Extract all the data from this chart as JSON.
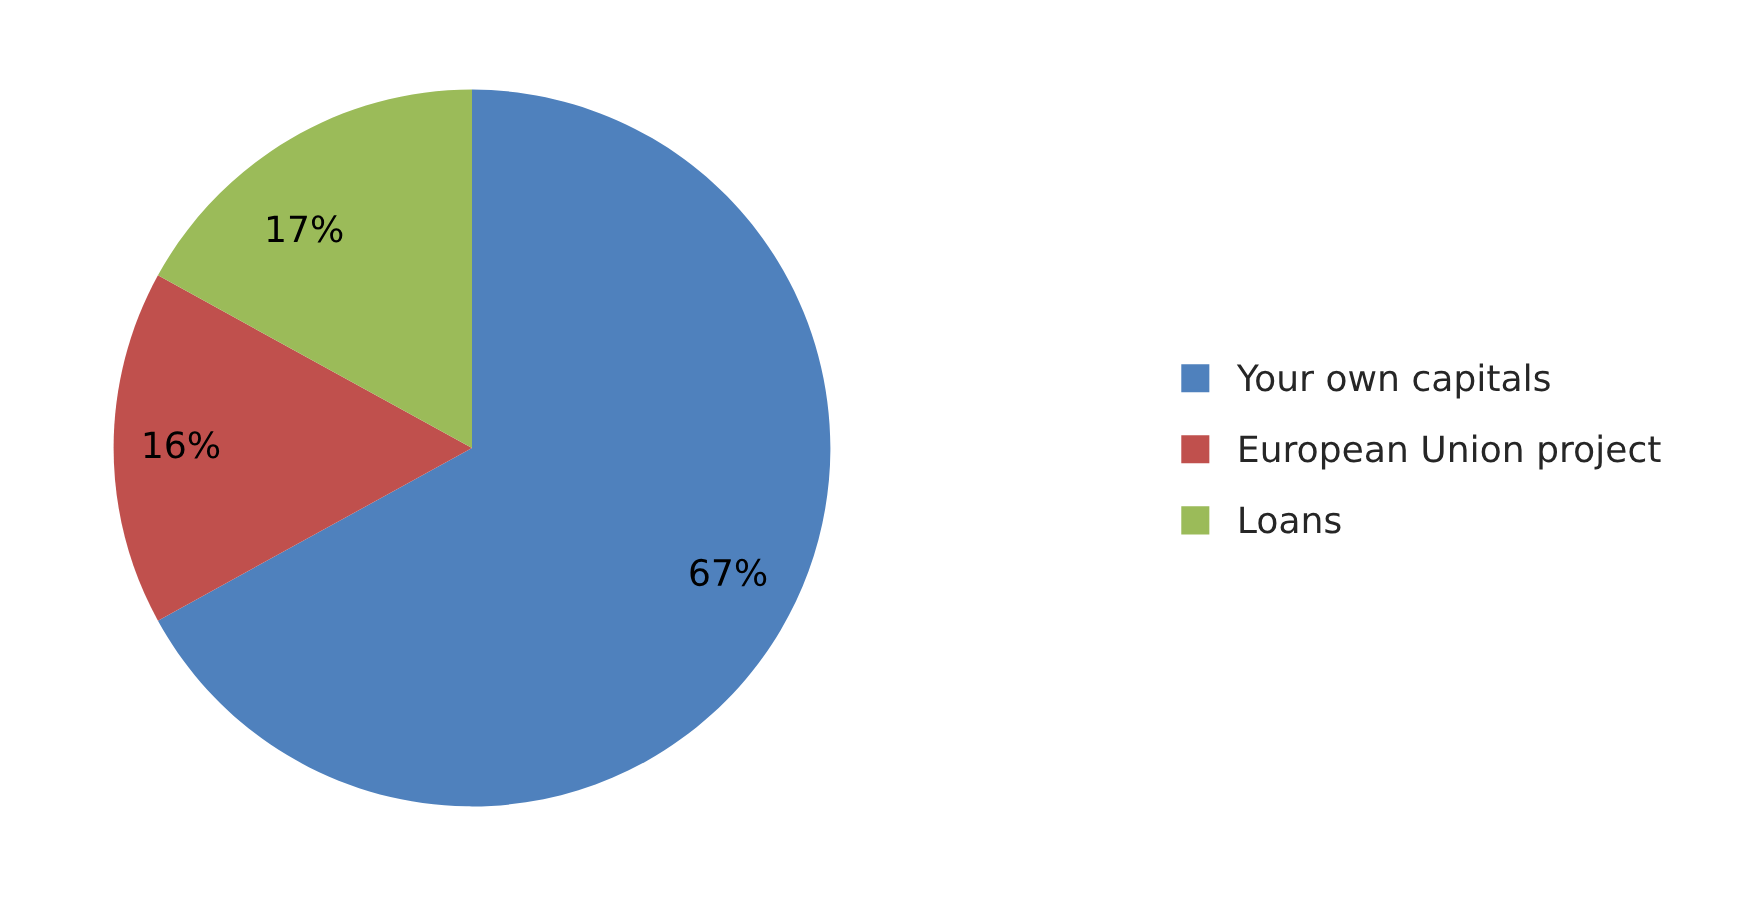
{
  "chart_data": {
    "type": "pie",
    "categories": [
      "Your own capitals",
      "European Union project",
      "Loans"
    ],
    "values": [
      67,
      16,
      17
    ],
    "colors": [
      "#4f81bd",
      "#c0504d",
      "#9bbb59"
    ],
    "value_labels": [
      "67%",
      "16%",
      "17%"
    ],
    "legend": "right"
  }
}
